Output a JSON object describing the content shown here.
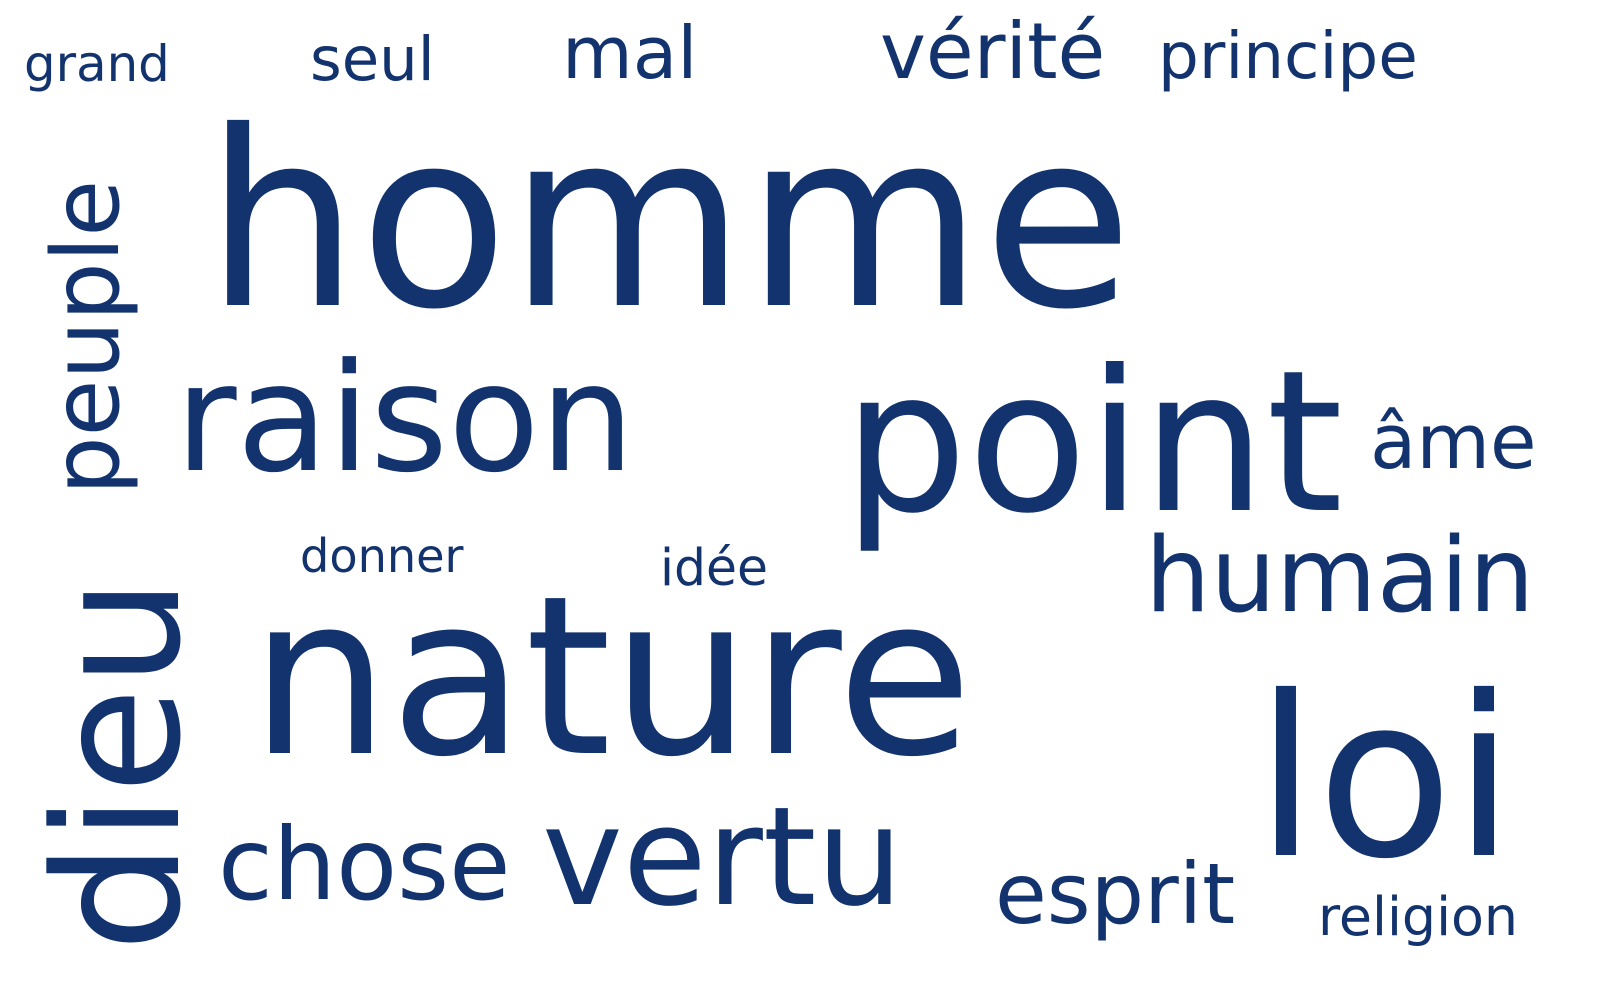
{
  "word_color": "#13336f",
  "background": "#ffffff",
  "words": [
    {
      "text": "homme",
      "weight": 100
    },
    {
      "text": "nature",
      "weight": 78
    },
    {
      "text": "raison",
      "weight": 58
    },
    {
      "text": "point",
      "weight": 58
    },
    {
      "text": "loi",
      "weight": 60
    },
    {
      "text": "dieu",
      "weight": 55
    },
    {
      "text": "vertu",
      "weight": 46
    },
    {
      "text": "chose",
      "weight": 35
    },
    {
      "text": "humain",
      "weight": 35
    },
    {
      "text": "peuple",
      "weight": 32
    },
    {
      "text": "vérité",
      "weight": 25
    },
    {
      "text": "esprit",
      "weight": 25
    },
    {
      "text": "mal",
      "weight": 24
    },
    {
      "text": "principe",
      "weight": 21
    },
    {
      "text": "âme",
      "weight": 21
    },
    {
      "text": "seul",
      "weight": 19
    },
    {
      "text": "religion",
      "weight": 18
    },
    {
      "text": "donner",
      "weight": 16
    },
    {
      "text": "idée",
      "weight": 16
    },
    {
      "text": "grand",
      "weight": 15
    }
  ]
}
